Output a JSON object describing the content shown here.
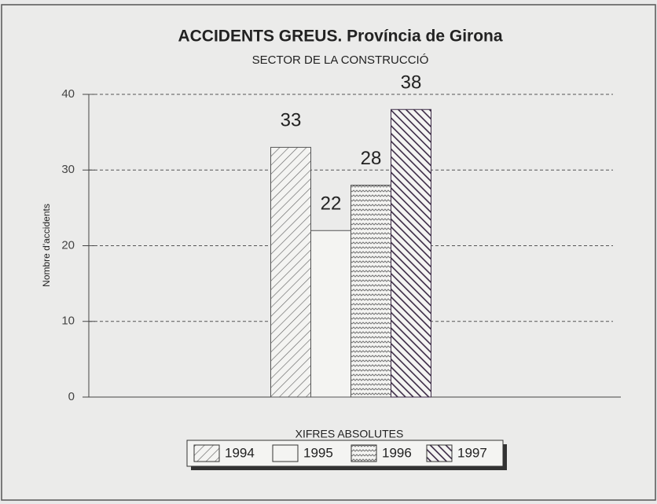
{
  "chart_data": {
    "type": "bar",
    "title": "ACCIDENTS GREUS. Província de Girona",
    "subtitle": "SECTOR DE LA CONSTRUCCIÓ",
    "y_label": "Nombre d'accidents",
    "categories": [
      "XIFRES ABSOLUTES"
    ],
    "series": [
      {
        "name": "1994",
        "color": "#555555",
        "pattern": "backslash",
        "values": [
          33
        ]
      },
      {
        "name": "1995",
        "color": "#555555",
        "pattern": "none",
        "values": [
          22
        ]
      },
      {
        "name": "1996",
        "color": "#555555",
        "pattern": "wave",
        "values": [
          28
        ]
      },
      {
        "name": "1997",
        "color": "#3b2a45",
        "pattern": "slash",
        "values": [
          38
        ]
      }
    ],
    "ylim": [
      0,
      40
    ],
    "yticks": [
      0,
      10,
      20,
      30,
      40
    ],
    "grid": true,
    "legend": "bottom"
  }
}
